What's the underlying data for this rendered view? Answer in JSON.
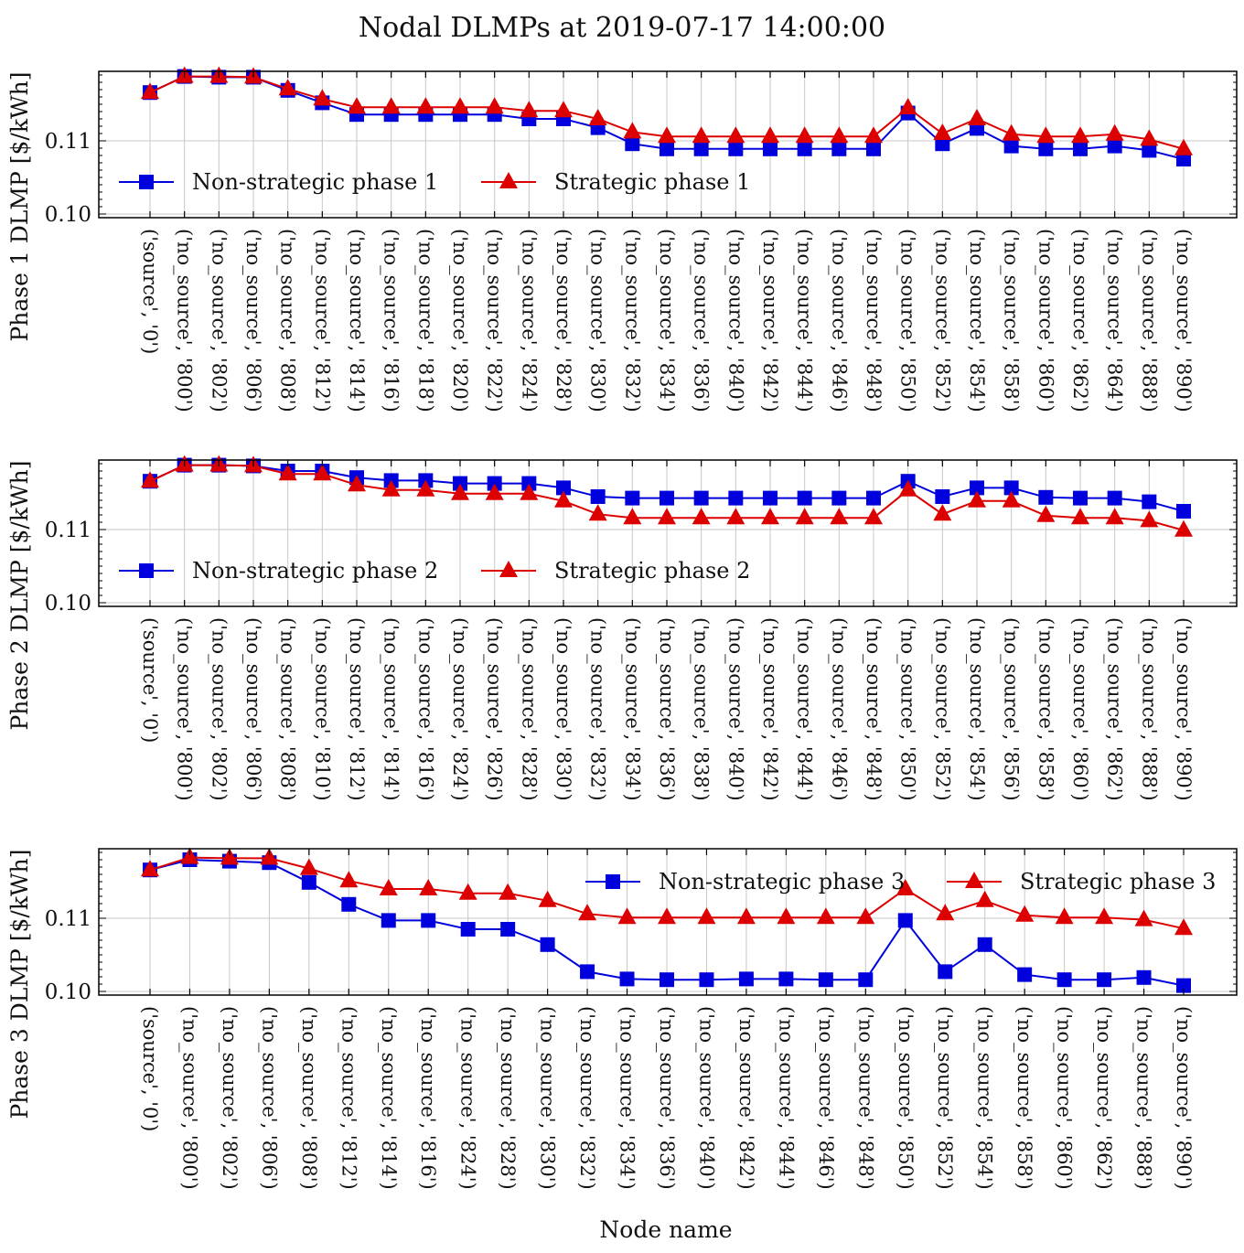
{
  "figure": {
    "title": "Nodal DLMPs at 2019-07-17 14:00:00",
    "xlabel": "Node name"
  },
  "colors": {
    "non_strategic": "#0000dd",
    "strategic": "#dd0000",
    "grid": "#c8c8c8",
    "axes": "#000000"
  },
  "chart_data": [
    {
      "type": "line",
      "ylabel": "Phase 1 DLMP [$/kWh]",
      "ylim": [
        0.0995,
        0.1195
      ],
      "yticks": [
        "0.10",
        "0.11"
      ],
      "grid": true,
      "legend_position": "lower-left, horizontal",
      "categories": [
        "('source', '0')",
        "('no_source', '800')",
        "('no_source', '802')",
        "('no_source', '806')",
        "('no_source', '808')",
        "('no_source', '812')",
        "('no_source', '814')",
        "('no_source', '816')",
        "('no_source', '818')",
        "('no_source', '820')",
        "('no_source', '822')",
        "('no_source', '824')",
        "('no_source', '828')",
        "('no_source', '830')",
        "('no_source', '832')",
        "('no_source', '834')",
        "('no_source', '836')",
        "('no_source', '840')",
        "('no_source', '842')",
        "('no_source', '844')",
        "('no_source', '846')",
        "('no_source', '848')",
        "('no_source', '850')",
        "('no_source', '852')",
        "('no_source', '854')",
        "('no_source', '858')",
        "('no_source', '860')",
        "('no_source', '862')",
        "('no_source', '864')",
        "('no_source', '888')",
        "('no_source', '890')"
      ],
      "series": [
        {
          "name": "Non-strategic phase 1",
          "marker": "square",
          "color": "#0000dd",
          "values": [
            0.1166,
            0.1188,
            0.1187,
            0.1187,
            0.1169,
            0.1152,
            0.1136,
            0.1136,
            0.1136,
            0.1136,
            0.1136,
            0.113,
            0.113,
            0.1118,
            0.1096,
            0.1089,
            0.1089,
            0.1089,
            0.1089,
            0.1089,
            0.1089,
            0.1089,
            0.1138,
            0.1096,
            0.1117,
            0.1093,
            0.1089,
            0.1089,
            0.1093,
            0.1087,
            0.1075
          ]
        },
        {
          "name": "Strategic phase 1",
          "marker": "triangle",
          "color": "#dd0000",
          "values": [
            0.1166,
            0.1188,
            0.1188,
            0.1187,
            0.1171,
            0.1157,
            0.1146,
            0.1146,
            0.1146,
            0.1146,
            0.1146,
            0.1141,
            0.1141,
            0.113,
            0.1112,
            0.1106,
            0.1106,
            0.1106,
            0.1106,
            0.1106,
            0.1106,
            0.1106,
            0.1145,
            0.111,
            0.113,
            0.1109,
            0.1106,
            0.1106,
            0.1109,
            0.1102,
            0.1089
          ]
        }
      ]
    },
    {
      "type": "line",
      "ylabel": "Phase 2 DLMP [$/kWh]",
      "ylim": [
        0.0995,
        0.1195
      ],
      "yticks": [
        "0.10",
        "0.11"
      ],
      "grid": true,
      "legend_position": "lower-left, horizontal",
      "categories": [
        "('source', '0')",
        "('no_source', '800')",
        "('no_source', '802')",
        "('no_source', '806')",
        "('no_source', '808')",
        "('no_source', '810')",
        "('no_source', '812')",
        "('no_source', '814')",
        "('no_source', '816')",
        "('no_source', '824')",
        "('no_source', '826')",
        "('no_source', '828')",
        "('no_source', '830')",
        "('no_source', '832')",
        "('no_source', '834')",
        "('no_source', '836')",
        "('no_source', '838')",
        "('no_source', '840')",
        "('no_source', '842')",
        "('no_source', '844')",
        "('no_source', '846')",
        "('no_source', '848')",
        "('no_source', '850')",
        "('no_source', '852')",
        "('no_source', '854')",
        "('no_source', '856')",
        "('no_source', '858')",
        "('no_source', '860')",
        "('no_source', '862')",
        "('no_source', '888')",
        "('no_source', '890')"
      ],
      "series": [
        {
          "name": "Non-strategic phase 2",
          "marker": "square",
          "color": "#0000dd",
          "values": [
            0.1166,
            0.1188,
            0.1188,
            0.1187,
            0.118,
            0.118,
            0.1171,
            0.1167,
            0.1167,
            0.1163,
            0.1163,
            0.1163,
            0.1157,
            0.1145,
            0.1143,
            0.1143,
            0.1143,
            0.1143,
            0.1143,
            0.1143,
            0.1143,
            0.1143,
            0.1166,
            0.1145,
            0.1157,
            0.1157,
            0.1144,
            0.1143,
            0.1143,
            0.1138,
            0.1125
          ]
        },
        {
          "name": "Strategic phase 2",
          "marker": "triangle",
          "color": "#dd0000",
          "values": [
            0.1166,
            0.1188,
            0.1188,
            0.1187,
            0.1176,
            0.1176,
            0.1161,
            0.1154,
            0.1154,
            0.1149,
            0.1149,
            0.1149,
            0.1139,
            0.1121,
            0.1116,
            0.1116,
            0.1116,
            0.1116,
            0.1116,
            0.1116,
            0.1116,
            0.1116,
            0.1154,
            0.1121,
            0.1139,
            0.1139,
            0.1119,
            0.1116,
            0.1116,
            0.1112,
            0.1099
          ]
        }
      ]
    },
    {
      "type": "line",
      "ylabel": "Phase 3 DLMP [$/kWh]",
      "ylim": [
        0.0995,
        0.1195
      ],
      "yticks": [
        "0.10",
        "0.11"
      ],
      "grid": true,
      "legend_position": "upper-right, horizontal",
      "categories": [
        "('source', '0')",
        "('no_source', '800')",
        "('no_source', '802')",
        "('no_source', '806')",
        "('no_source', '808')",
        "('no_source', '812')",
        "('no_source', '814')",
        "('no_source', '816')",
        "('no_source', '824')",
        "('no_source', '828')",
        "('no_source', '830')",
        "('no_source', '832')",
        "('no_source', '834')",
        "('no_source', '836')",
        "('no_source', '840')",
        "('no_source', '842')",
        "('no_source', '844')",
        "('no_source', '846')",
        "('no_source', '848')",
        "('no_source', '850')",
        "('no_source', '852')",
        "('no_source', '854')",
        "('no_source', '858')",
        "('no_source', '860')",
        "('no_source', '862')",
        "('no_source', '888')",
        "('no_source', '890')"
      ],
      "series": [
        {
          "name": "Non-strategic phase 3",
          "marker": "square",
          "color": "#0000dd",
          "values": [
            0.1166,
            0.118,
            0.1178,
            0.1176,
            0.1149,
            0.1119,
            0.1097,
            0.1097,
            0.1085,
            0.1085,
            0.1064,
            0.1027,
            0.1017,
            0.1016,
            0.1016,
            0.1017,
            0.1017,
            0.1016,
            0.1016,
            0.1097,
            0.1027,
            0.1064,
            0.1023,
            0.1016,
            0.1016,
            0.1019,
            0.1008
          ]
        },
        {
          "name": "Strategic phase 3",
          "marker": "triangle",
          "color": "#dd0000",
          "values": [
            0.1166,
            0.1183,
            0.1182,
            0.1182,
            0.1168,
            0.1151,
            0.114,
            0.114,
            0.1134,
            0.1134,
            0.1124,
            0.1106,
            0.1101,
            0.1101,
            0.1101,
            0.1101,
            0.1101,
            0.1101,
            0.1101,
            0.114,
            0.1106,
            0.1124,
            0.1104,
            0.1101,
            0.1101,
            0.1098,
            0.1086
          ]
        }
      ]
    }
  ]
}
